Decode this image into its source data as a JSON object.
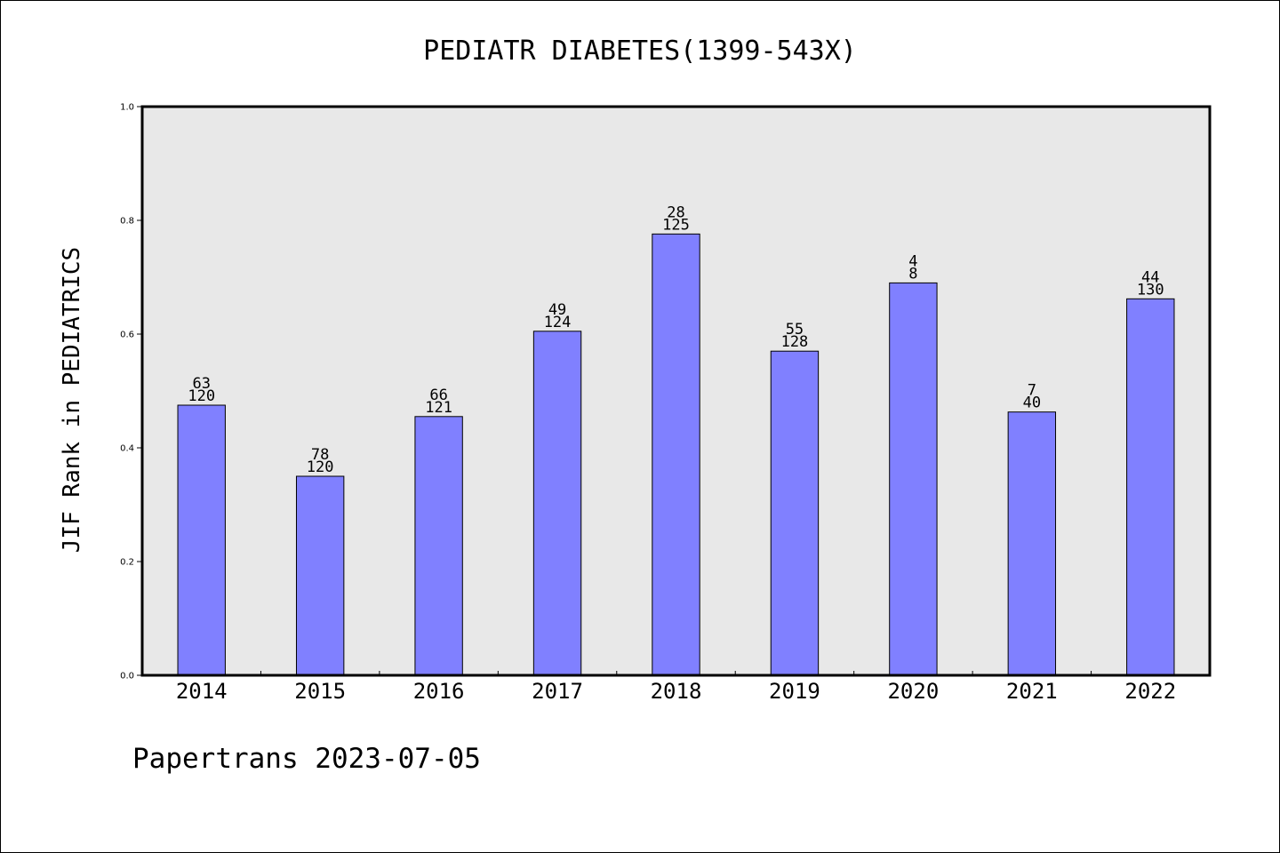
{
  "footer": {
    "text": "Papertrans 2023-07-05"
  },
  "colors": {
    "bar_fill": "#8080ff",
    "bar_stroke": "#000000",
    "plot_background": "#e8e8e8",
    "axis": "#000000",
    "page_background": "#ffffff"
  },
  "chart_data": {
    "type": "bar",
    "title": "PEDIATR DIABETES(1399-543X)",
    "xlabel": "",
    "ylabel": "JIF Rank in PEDIATRICS",
    "ylim": [
      0,
      1.0
    ],
    "yticks": [
      "0.0",
      "0.2",
      "0.4",
      "0.6",
      "0.8",
      "1.0"
    ],
    "grid": false,
    "categories": [
      "2014",
      "2015",
      "2016",
      "2017",
      "2018",
      "2019",
      "2020",
      "2021",
      "2022"
    ],
    "values": [
      0.475,
      0.35,
      0.455,
      0.605,
      0.776,
      0.57,
      0.69,
      0.463,
      0.662
    ],
    "labels_rank": [
      "63",
      "78",
      "66",
      "49",
      "28",
      "55",
      "4",
      "7",
      "44"
    ],
    "labels_total": [
      "120",
      "120",
      "121",
      "124",
      "125",
      "128",
      "8",
      "40",
      "130"
    ]
  }
}
